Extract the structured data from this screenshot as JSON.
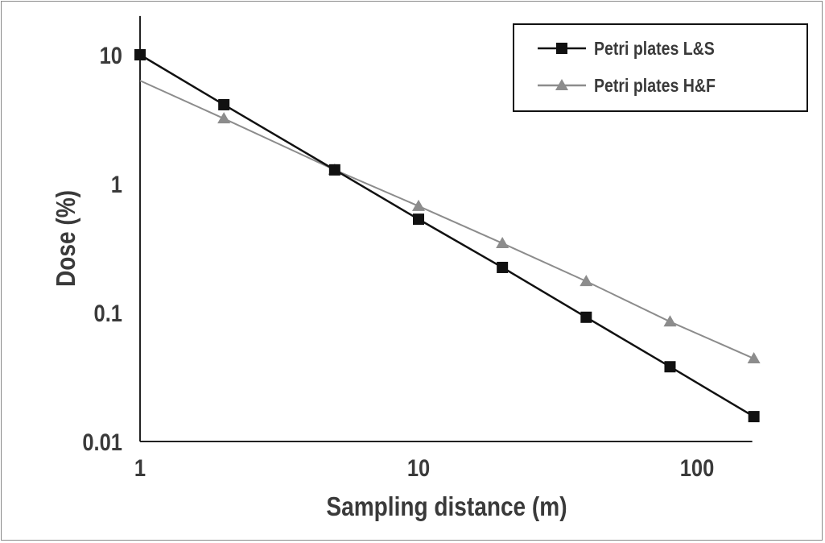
{
  "chart_data": {
    "type": "line",
    "title": "",
    "xlabel": "Sampling distance (m)",
    "ylabel": "Dose (%)",
    "xscale": "log",
    "yscale": "log",
    "xlim": [
      1,
      160
    ],
    "ylim": [
      0.01,
      20
    ],
    "xticks": [
      {
        "value": 1,
        "label": "1"
      },
      {
        "value": 10,
        "label": "10"
      },
      {
        "value": 100,
        "label": "100"
      }
    ],
    "yticks": [
      {
        "value": 10,
        "label": "10"
      },
      {
        "value": 1,
        "label": "1"
      },
      {
        "value": 0.1,
        "label": "0.1"
      },
      {
        "value": 0.01,
        "label": "0.01"
      }
    ],
    "grid": false,
    "legend_position": "top-right",
    "series": [
      {
        "name": "Petri plates L&S",
        "color": "#111111",
        "marker": "square",
        "show_first_marker": true,
        "x": [
          1,
          2,
          5,
          10,
          20,
          40,
          80,
          160
        ],
        "y": [
          10,
          4.1,
          1.28,
          0.53,
          0.224,
          0.092,
          0.038,
          0.0156
        ]
      },
      {
        "name": "Petri plates H&F",
        "color": "#8c8c8c",
        "marker": "triangle",
        "show_first_marker": false,
        "x": [
          1,
          2,
          5,
          10,
          20,
          40,
          80,
          160
        ],
        "y": [
          6.3,
          3.2,
          1.28,
          0.67,
          0.345,
          0.175,
          0.085,
          0.044
        ]
      }
    ]
  }
}
